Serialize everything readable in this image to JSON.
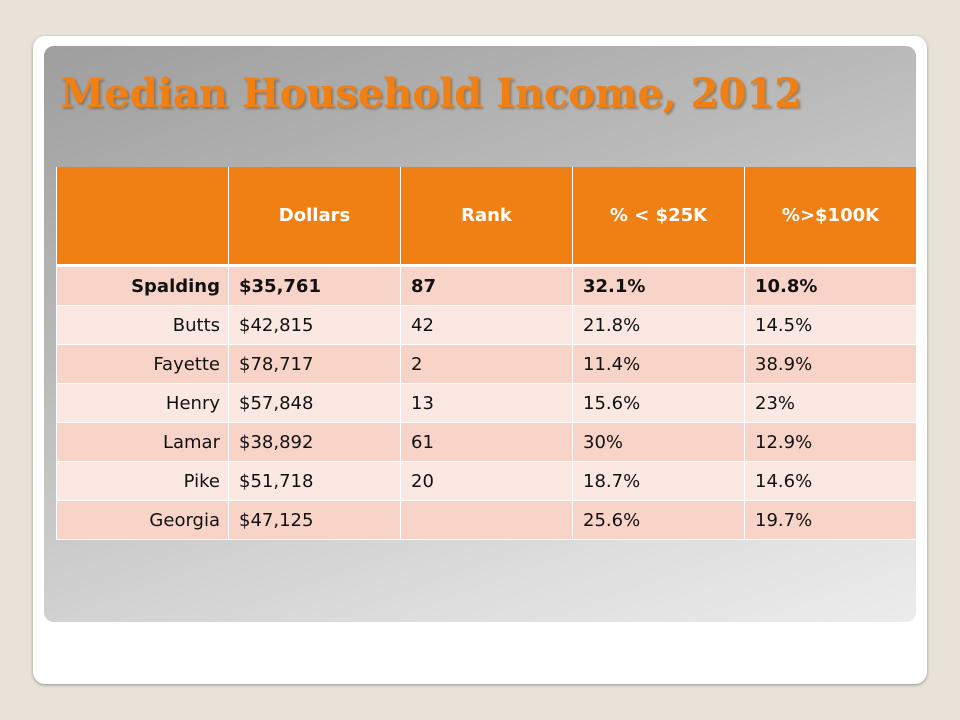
{
  "slide": {
    "title": "Median Household Income, 2012"
  },
  "table": {
    "headers": [
      "",
      "Dollars",
      "Rank",
      "% < $25K",
      "%>$100K"
    ],
    "rows": [
      {
        "county": "Spalding",
        "dollars": "$35,761",
        "rank": "87",
        "under_25k": "32.1%",
        "over_100k": "10.8%"
      },
      {
        "county": "Butts",
        "dollars": "$42,815",
        "rank": "42",
        "under_25k": "21.8%",
        "over_100k": "14.5%"
      },
      {
        "county": "Fayette",
        "dollars": "$78,717",
        "rank": "2",
        "under_25k": "11.4%",
        "over_100k": "38.9%"
      },
      {
        "county": "Henry",
        "dollars": "$57,848",
        "rank": "13",
        "under_25k": "15.6%",
        "over_100k": "23%"
      },
      {
        "county": "Lamar",
        "dollars": "$38,892",
        "rank": "61",
        "under_25k": "30%",
        "over_100k": "12.9%"
      },
      {
        "county": "Pike",
        "dollars": "$51,718",
        "rank": "20",
        "under_25k": "18.7%",
        "over_100k": "14.6%"
      },
      {
        "county": "Georgia",
        "dollars": "$47,125",
        "rank": "",
        "under_25k": "25.6%",
        "over_100k": "19.7%"
      }
    ]
  },
  "colors": {
    "accent": "#f07f14",
    "row_odd": "#f7d4c7",
    "row_even": "#fbe8e2"
  }
}
